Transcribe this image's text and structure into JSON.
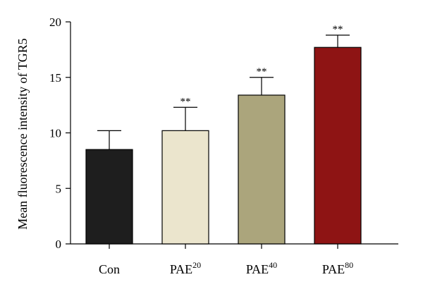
{
  "chart_data": {
    "type": "bar",
    "title": "",
    "xlabel": "",
    "ylabel": "Mean fluorescence intensity of TGR5",
    "ylim": [
      0,
      20
    ],
    "yticks": [
      0,
      5,
      10,
      15,
      20
    ],
    "categories": [
      {
        "base": "Con",
        "sup": ""
      },
      {
        "base": "PAE",
        "sup": "20"
      },
      {
        "base": "PAE",
        "sup": "40"
      },
      {
        "base": "PAE",
        "sup": "80"
      }
    ],
    "values": [
      8.5,
      10.2,
      13.4,
      17.7
    ],
    "error": [
      1.7,
      2.1,
      1.6,
      1.1
    ],
    "significance": [
      "",
      "**",
      "**",
      "**"
    ],
    "colors": [
      "#1e1e1e",
      "#ebe5cd",
      "#aba57c",
      "#8e1414"
    ],
    "grid": false,
    "legend": "none"
  }
}
